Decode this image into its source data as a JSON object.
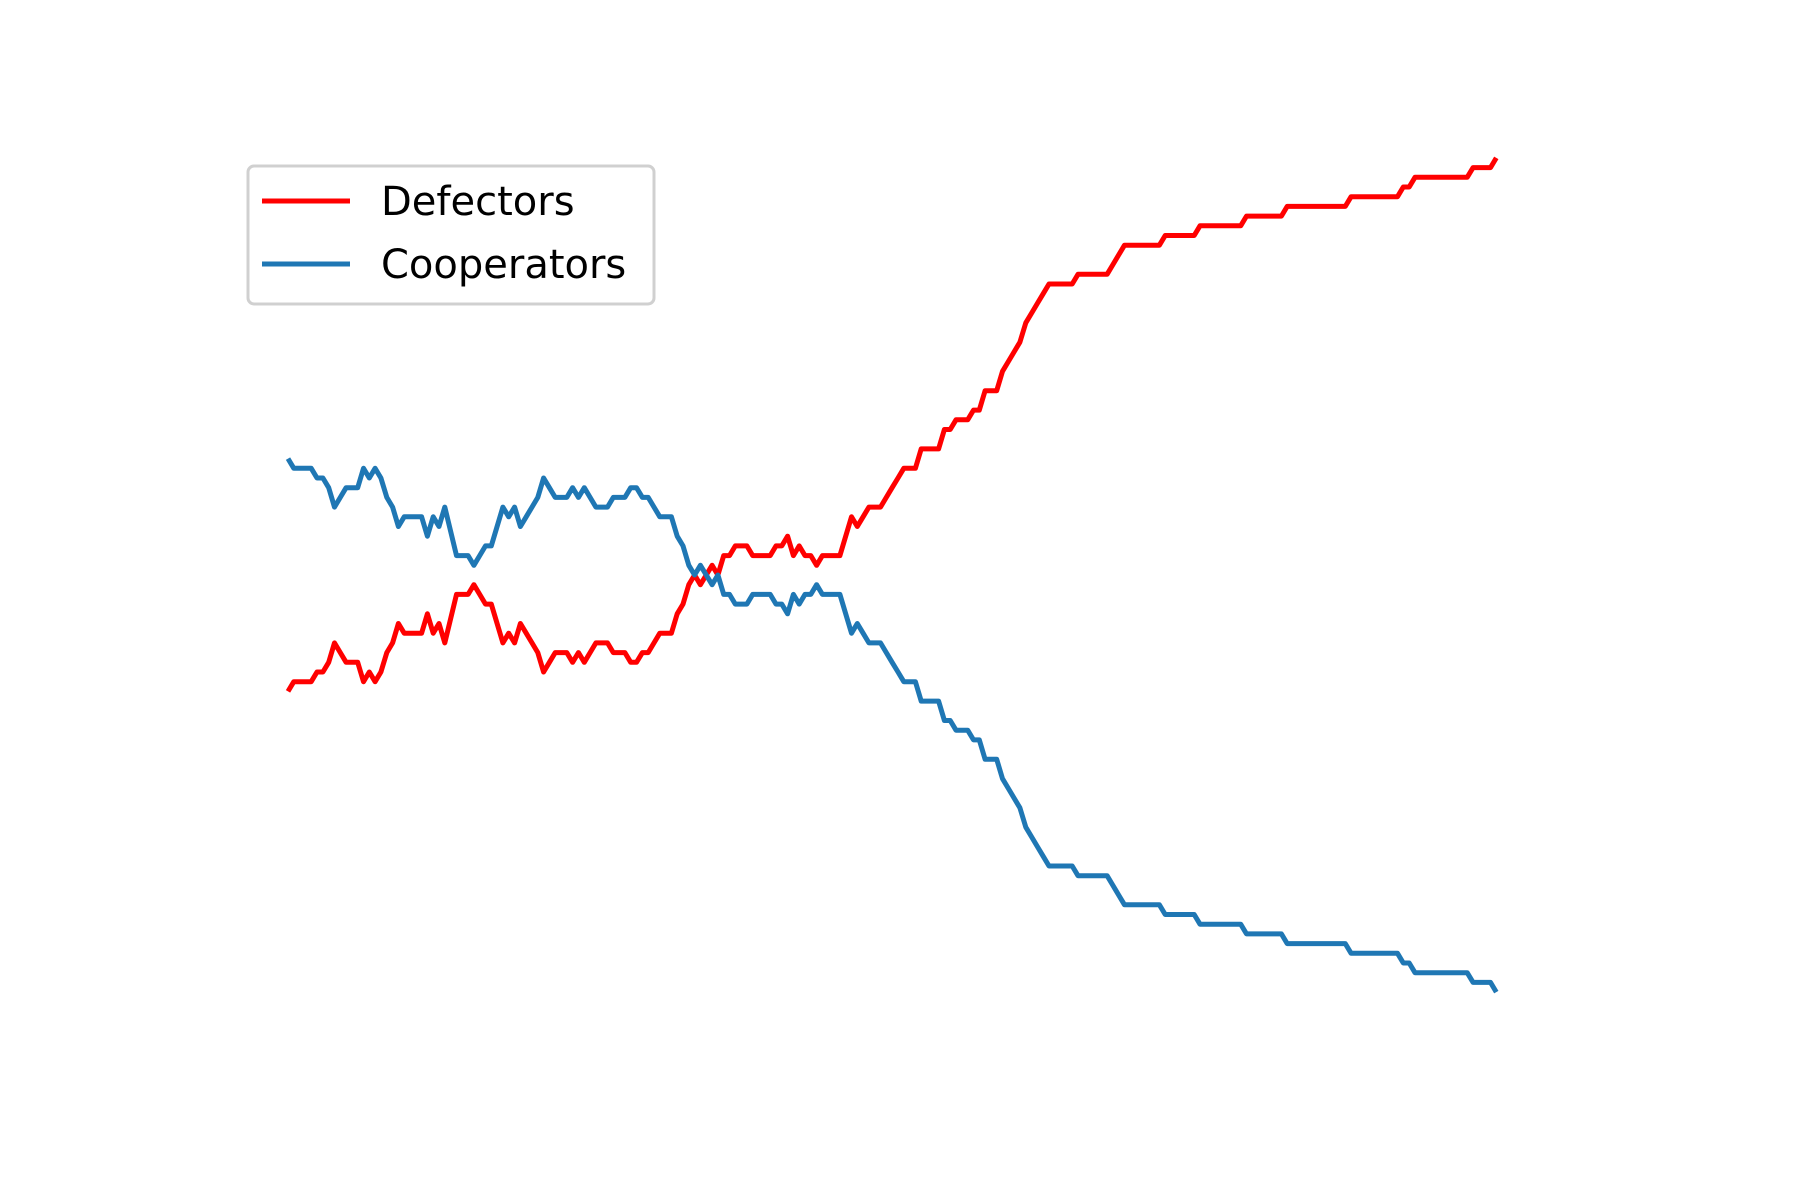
{
  "chart_data": {
    "type": "line",
    "title": "",
    "xlabel": "",
    "ylabel": "",
    "axes_visible": false,
    "grid": false,
    "legend_position": "upper-left",
    "xlim": [
      0,
      220
    ],
    "ylim": [
      0,
      1
    ],
    "series": [
      {
        "name": "Defectors",
        "color": "#ff0000",
        "points": [
          [
            0,
            0.38
          ],
          [
            1,
            0.39
          ],
          [
            4,
            0.39
          ],
          [
            5,
            0.4
          ],
          [
            6,
            0.4
          ],
          [
            7,
            0.41
          ],
          [
            8,
            0.43
          ],
          [
            9,
            0.42
          ],
          [
            10,
            0.41
          ],
          [
            12,
            0.41
          ],
          [
            13,
            0.39
          ],
          [
            14,
            0.4
          ],
          [
            15,
            0.39
          ],
          [
            16,
            0.4
          ],
          [
            17,
            0.42
          ],
          [
            18,
            0.43
          ],
          [
            19,
            0.45
          ],
          [
            20,
            0.44
          ],
          [
            23,
            0.44
          ],
          [
            24,
            0.46
          ],
          [
            25,
            0.44
          ],
          [
            26,
            0.45
          ],
          [
            27,
            0.43
          ],
          [
            29,
            0.48
          ],
          [
            31,
            0.48
          ],
          [
            32,
            0.49
          ],
          [
            33,
            0.48
          ],
          [
            34,
            0.47
          ],
          [
            35,
            0.47
          ],
          [
            37,
            0.43
          ],
          [
            38,
            0.44
          ],
          [
            39,
            0.43
          ],
          [
            40,
            0.45
          ],
          [
            41,
            0.44
          ],
          [
            42,
            0.43
          ],
          [
            43,
            0.42
          ],
          [
            44,
            0.4
          ],
          [
            45,
            0.41
          ],
          [
            46,
            0.42
          ],
          [
            48,
            0.42
          ],
          [
            49,
            0.41
          ],
          [
            50,
            0.42
          ],
          [
            51,
            0.41
          ],
          [
            52,
            0.42
          ],
          [
            53,
            0.43
          ],
          [
            55,
            0.43
          ],
          [
            56,
            0.42
          ],
          [
            58,
            0.42
          ],
          [
            59,
            0.41
          ],
          [
            60,
            0.41
          ],
          [
            61,
            0.42
          ],
          [
            62,
            0.42
          ],
          [
            63,
            0.43
          ],
          [
            64,
            0.44
          ],
          [
            66,
            0.44
          ],
          [
            67,
            0.46
          ],
          [
            68,
            0.47
          ],
          [
            69,
            0.49
          ],
          [
            70,
            0.5
          ],
          [
            71,
            0.49
          ],
          [
            73,
            0.51
          ],
          [
            74,
            0.5
          ],
          [
            75,
            0.52
          ],
          [
            76,
            0.52
          ],
          [
            77,
            0.53
          ],
          [
            79,
            0.53
          ],
          [
            80,
            0.52
          ],
          [
            83,
            0.52
          ],
          [
            84,
            0.53
          ],
          [
            85,
            0.53
          ],
          [
            86,
            0.54
          ],
          [
            87,
            0.52
          ],
          [
            88,
            0.53
          ],
          [
            89,
            0.52
          ],
          [
            90,
            0.52
          ],
          [
            91,
            0.51
          ],
          [
            92,
            0.52
          ],
          [
            95,
            0.52
          ],
          [
            97,
            0.56
          ],
          [
            98,
            0.55
          ],
          [
            99,
            0.56
          ],
          [
            100,
            0.57
          ],
          [
            102,
            0.57
          ],
          [
            103,
            0.58
          ],
          [
            104,
            0.59
          ],
          [
            105,
            0.6
          ],
          [
            106,
            0.61
          ],
          [
            108,
            0.61
          ],
          [
            109,
            0.63
          ],
          [
            112,
            0.63
          ],
          [
            113,
            0.65
          ],
          [
            114,
            0.65
          ],
          [
            115,
            0.66
          ],
          [
            117,
            0.66
          ],
          [
            118,
            0.67
          ],
          [
            119,
            0.67
          ],
          [
            120,
            0.69
          ],
          [
            122,
            0.69
          ],
          [
            123,
            0.71
          ],
          [
            124,
            0.72
          ],
          [
            125,
            0.73
          ],
          [
            126,
            0.74
          ],
          [
            127,
            0.76
          ],
          [
            128,
            0.77
          ],
          [
            129,
            0.78
          ],
          [
            130,
            0.79
          ],
          [
            131,
            0.8
          ],
          [
            133,
            0.8
          ],
          [
            135,
            0.8
          ],
          [
            136,
            0.81
          ],
          [
            141,
            0.81
          ],
          [
            142,
            0.82
          ],
          [
            143,
            0.83
          ],
          [
            144,
            0.84
          ],
          [
            145,
            0.84
          ],
          [
            150,
            0.84
          ],
          [
            151,
            0.85
          ],
          [
            156,
            0.85
          ],
          [
            157,
            0.86
          ],
          [
            164,
            0.86
          ],
          [
            165,
            0.87
          ],
          [
            171,
            0.87
          ],
          [
            172,
            0.88
          ],
          [
            182,
            0.88
          ],
          [
            183,
            0.89
          ],
          [
            191,
            0.89
          ],
          [
            192,
            0.9
          ],
          [
            193,
            0.9
          ],
          [
            194,
            0.91
          ],
          [
            203,
            0.91
          ],
          [
            204,
            0.92
          ],
          [
            207,
            0.92
          ],
          [
            208,
            0.93
          ]
        ]
      },
      {
        "name": "Cooperators",
        "color": "#1f77b4",
        "points": [
          [
            0,
            0.62
          ],
          [
            1,
            0.61
          ],
          [
            4,
            0.61
          ],
          [
            5,
            0.6
          ],
          [
            6,
            0.6
          ],
          [
            7,
            0.59
          ],
          [
            8,
            0.57
          ],
          [
            9,
            0.58
          ],
          [
            10,
            0.59
          ],
          [
            12,
            0.59
          ],
          [
            13,
            0.61
          ],
          [
            14,
            0.6
          ],
          [
            15,
            0.61
          ],
          [
            16,
            0.6
          ],
          [
            17,
            0.58
          ],
          [
            18,
            0.57
          ],
          [
            19,
            0.55
          ],
          [
            20,
            0.56
          ],
          [
            23,
            0.56
          ],
          [
            24,
            0.54
          ],
          [
            25,
            0.56
          ],
          [
            26,
            0.55
          ],
          [
            27,
            0.57
          ],
          [
            29,
            0.52
          ],
          [
            31,
            0.52
          ],
          [
            32,
            0.51
          ],
          [
            33,
            0.52
          ],
          [
            34,
            0.53
          ],
          [
            35,
            0.53
          ],
          [
            37,
            0.57
          ],
          [
            38,
            0.56
          ],
          [
            39,
            0.57
          ],
          [
            40,
            0.55
          ],
          [
            41,
            0.56
          ],
          [
            42,
            0.57
          ],
          [
            43,
            0.58
          ],
          [
            44,
            0.6
          ],
          [
            45,
            0.59
          ],
          [
            46,
            0.58
          ],
          [
            48,
            0.58
          ],
          [
            49,
            0.59
          ],
          [
            50,
            0.58
          ],
          [
            51,
            0.59
          ],
          [
            52,
            0.58
          ],
          [
            53,
            0.57
          ],
          [
            55,
            0.57
          ],
          [
            56,
            0.58
          ],
          [
            58,
            0.58
          ],
          [
            59,
            0.59
          ],
          [
            60,
            0.59
          ],
          [
            61,
            0.58
          ],
          [
            62,
            0.58
          ],
          [
            63,
            0.57
          ],
          [
            64,
            0.56
          ],
          [
            66,
            0.56
          ],
          [
            67,
            0.54
          ],
          [
            68,
            0.53
          ],
          [
            69,
            0.51
          ],
          [
            70,
            0.5
          ],
          [
            71,
            0.51
          ],
          [
            73,
            0.49
          ],
          [
            74,
            0.5
          ],
          [
            75,
            0.48
          ],
          [
            76,
            0.48
          ],
          [
            77,
            0.47
          ],
          [
            79,
            0.47
          ],
          [
            80,
            0.48
          ],
          [
            83,
            0.48
          ],
          [
            84,
            0.47
          ],
          [
            85,
            0.47
          ],
          [
            86,
            0.46
          ],
          [
            87,
            0.48
          ],
          [
            88,
            0.47
          ],
          [
            89,
            0.48
          ],
          [
            90,
            0.48
          ],
          [
            91,
            0.49
          ],
          [
            92,
            0.48
          ],
          [
            95,
            0.48
          ],
          [
            97,
            0.44
          ],
          [
            98,
            0.45
          ],
          [
            99,
            0.44
          ],
          [
            100,
            0.43
          ],
          [
            102,
            0.43
          ],
          [
            103,
            0.42
          ],
          [
            104,
            0.41
          ],
          [
            105,
            0.4
          ],
          [
            106,
            0.39
          ],
          [
            108,
            0.39
          ],
          [
            109,
            0.37
          ],
          [
            112,
            0.37
          ],
          [
            113,
            0.35
          ],
          [
            114,
            0.35
          ],
          [
            115,
            0.34
          ],
          [
            117,
            0.34
          ],
          [
            118,
            0.33
          ],
          [
            119,
            0.33
          ],
          [
            120,
            0.31
          ],
          [
            122,
            0.31
          ],
          [
            123,
            0.29
          ],
          [
            124,
            0.28
          ],
          [
            125,
            0.27
          ],
          [
            126,
            0.26
          ],
          [
            127,
            0.24
          ],
          [
            128,
            0.23
          ],
          [
            129,
            0.22
          ],
          [
            130,
            0.21
          ],
          [
            131,
            0.2
          ],
          [
            133,
            0.2
          ],
          [
            135,
            0.2
          ],
          [
            136,
            0.19
          ],
          [
            141,
            0.19
          ],
          [
            142,
            0.18
          ],
          [
            143,
            0.17
          ],
          [
            144,
            0.16
          ],
          [
            145,
            0.16
          ],
          [
            150,
            0.16
          ],
          [
            151,
            0.15
          ],
          [
            156,
            0.15
          ],
          [
            157,
            0.14
          ],
          [
            164,
            0.14
          ],
          [
            165,
            0.13
          ],
          [
            171,
            0.13
          ],
          [
            172,
            0.12
          ],
          [
            182,
            0.12
          ],
          [
            183,
            0.11
          ],
          [
            191,
            0.11
          ],
          [
            192,
            0.1
          ],
          [
            193,
            0.1
          ],
          [
            194,
            0.09
          ],
          [
            203,
            0.09
          ],
          [
            204,
            0.08
          ],
          [
            207,
            0.08
          ],
          [
            208,
            0.07
          ]
        ]
      }
    ]
  }
}
